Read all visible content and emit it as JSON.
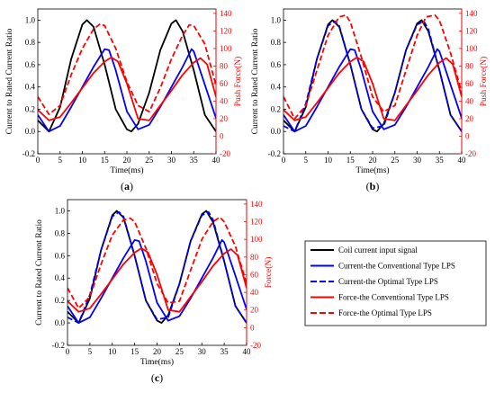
{
  "chart_data": [
    {
      "type": "line",
      "panel_label": "(a)",
      "xlabel": "Time(ms)",
      "ylabel": "Current to Rated Current Ratio",
      "y2label": "Push Force(N)",
      "xlim": [
        0,
        40
      ],
      "ylim": [
        -0.2,
        1.1
      ],
      "y2lim": [
        -20,
        145
      ],
      "xticks": [
        0,
        5,
        10,
        15,
        20,
        25,
        30,
        35,
        40
      ],
      "yticks": [
        -0.2,
        0.0,
        0.2,
        0.4,
        0.6,
        0.8,
        1.0
      ],
      "y2ticks": [
        -20,
        0,
        20,
        40,
        60,
        80,
        100,
        120,
        140
      ],
      "grid": false,
      "series": [
        {
          "axis": "left",
          "color": "#000000",
          "dash": "solid",
          "x": [
            0,
            2.5,
            5,
            7.5,
            10,
            11,
            12.5,
            15,
            17.5,
            20,
            21,
            22.5,
            25,
            27.5,
            30,
            31,
            32.5,
            35,
            37.5,
            40
          ],
          "y": [
            0.1,
            0.0,
            0.22,
            0.65,
            0.96,
            1.0,
            0.94,
            0.6,
            0.2,
            0.02,
            0.0,
            0.07,
            0.35,
            0.73,
            0.97,
            1.0,
            0.9,
            0.55,
            0.15,
            0.0
          ]
        },
        {
          "axis": "left",
          "color": "#0000ff",
          "dash": "solid",
          "x": [
            0,
            2.5,
            5,
            7.5,
            10,
            12.5,
            15,
            16,
            17.5,
            20,
            22.5,
            25,
            27.5,
            30,
            32.5,
            34.5,
            35,
            37.5,
            40
          ],
          "y": [
            0.15,
            0.0,
            0.05,
            0.22,
            0.4,
            0.58,
            0.74,
            0.73,
            0.55,
            0.18,
            0.02,
            0.06,
            0.22,
            0.4,
            0.58,
            0.74,
            0.72,
            0.42,
            0.12
          ]
        },
        {
          "axis": "right",
          "color": "#ff0000",
          "dash": "solid",
          "x": [
            0,
            2.5,
            5,
            7.5,
            10,
            12.5,
            15,
            16.5,
            18,
            20,
            22.5,
            25,
            27.5,
            30,
            32.5,
            35,
            36.5,
            38,
            40
          ],
          "y": [
            30,
            18,
            22,
            38,
            55,
            72,
            85,
            90,
            85,
            60,
            20,
            18,
            35,
            52,
            70,
            84,
            89,
            82,
            45
          ]
        },
        {
          "axis": "right",
          "color": "#ff0000",
          "dash": "dashed",
          "x": [
            0,
            2.5,
            5,
            7.5,
            10,
            12.5,
            14,
            15,
            17.5,
            20,
            22.5,
            25,
            27.5,
            30,
            32.5,
            34,
            35,
            37.5,
            40
          ],
          "y": [
            45,
            25,
            35,
            70,
            100,
            122,
            128,
            126,
            100,
            62,
            35,
            28,
            55,
            88,
            115,
            127,
            126,
            105,
            58
          ]
        }
      ]
    },
    {
      "type": "line",
      "panel_label": "(b)",
      "xlabel": "Time(ms)",
      "ylabel": "Current to Rated Current Ratio",
      "y2label": "Push Force(N)",
      "xlim": [
        0,
        40
      ],
      "ylim": [
        -0.2,
        1.1
      ],
      "y2lim": [
        -20,
        145
      ],
      "xticks": [
        0,
        5,
        10,
        15,
        20,
        25,
        30,
        35,
        40
      ],
      "yticks": [
        -0.2,
        0.0,
        0.2,
        0.4,
        0.6,
        0.8,
        1.0
      ],
      "y2ticks": [
        -20,
        0,
        20,
        40,
        60,
        80,
        100,
        120,
        140
      ],
      "grid": false,
      "series": [
        {
          "axis": "left",
          "color": "#000000",
          "dash": "solid",
          "x": [
            0,
            2.5,
            5,
            7.5,
            10,
            11,
            12.5,
            15,
            17.5,
            20,
            21,
            22.5,
            25,
            27.5,
            30,
            31,
            32.5,
            35,
            37.5,
            40
          ],
          "y": [
            0.1,
            0.0,
            0.22,
            0.65,
            0.96,
            1.0,
            0.94,
            0.6,
            0.2,
            0.02,
            0.0,
            0.07,
            0.35,
            0.73,
            0.97,
            1.0,
            0.9,
            0.55,
            0.15,
            0.0
          ]
        },
        {
          "axis": "left",
          "color": "#0000ff",
          "dash": "solid",
          "x": [
            0,
            2.5,
            5,
            7.5,
            10,
            12.5,
            15,
            16,
            17.5,
            20,
            22.5,
            25,
            27.5,
            30,
            32.5,
            34.5,
            35,
            37.5,
            40
          ],
          "y": [
            0.15,
            0.0,
            0.05,
            0.22,
            0.4,
            0.58,
            0.74,
            0.73,
            0.55,
            0.18,
            0.02,
            0.06,
            0.22,
            0.4,
            0.58,
            0.74,
            0.72,
            0.42,
            0.12
          ]
        },
        {
          "axis": "left",
          "color": "#0000ff",
          "dash": "dashed",
          "x": [
            0,
            2.5,
            5,
            7.5,
            10,
            11.5,
            12.5,
            15,
            17.5,
            20,
            22.5,
            25,
            27.5,
            30,
            31.5,
            32.5,
            35,
            37.5,
            40
          ],
          "y": [
            0.05,
            0.0,
            0.25,
            0.65,
            0.95,
            0.99,
            0.95,
            0.6,
            0.2,
            0.03,
            0.05,
            0.35,
            0.73,
            0.96,
            0.99,
            0.92,
            0.55,
            0.15,
            0.0
          ]
        },
        {
          "axis": "right",
          "color": "#ff0000",
          "dash": "solid",
          "x": [
            0,
            2.5,
            5,
            7.5,
            10,
            12.5,
            15,
            16.5,
            18,
            20,
            22.5,
            25,
            27.5,
            30,
            32.5,
            35,
            36.5,
            38,
            40
          ],
          "y": [
            30,
            18,
            22,
            38,
            55,
            72,
            85,
            90,
            85,
            60,
            20,
            18,
            35,
            52,
            70,
            84,
            89,
            82,
            45
          ]
        },
        {
          "axis": "right",
          "color": "#ff0000",
          "dash": "dashed",
          "x": [
            0,
            2.5,
            5,
            7.5,
            10,
            12.5,
            14,
            15,
            17.5,
            20,
            22.5,
            25,
            27.5,
            30,
            32,
            34,
            35,
            37.5,
            40
          ],
          "y": [
            45,
            20,
            35,
            75,
            115,
            136,
            138,
            130,
            90,
            45,
            28,
            35,
            75,
            115,
            136,
            138,
            132,
            95,
            50
          ]
        }
      ]
    },
    {
      "type": "line",
      "panel_label": "(c)",
      "xlabel": "Time(ms)",
      "ylabel": "Current to Rated Current Ratio",
      "y2label": "Force(N)",
      "xlim": [
        0,
        40
      ],
      "ylim": [
        -0.2,
        1.1
      ],
      "y2lim": [
        -20,
        145
      ],
      "xticks": [
        0,
        5,
        10,
        15,
        20,
        25,
        30,
        35,
        40
      ],
      "yticks": [
        -0.2,
        0.0,
        0.2,
        0.4,
        0.6,
        0.8,
        1.0
      ],
      "y2ticks": [
        -20,
        0,
        20,
        40,
        60,
        80,
        100,
        120,
        140
      ],
      "grid": false,
      "series": [
        {
          "axis": "left",
          "color": "#000000",
          "dash": "solid",
          "x": [
            0,
            2.5,
            5,
            7.5,
            10,
            11,
            12.5,
            15,
            17.5,
            20,
            21,
            22.5,
            25,
            27.5,
            30,
            31,
            32.5,
            35,
            37.5,
            40
          ],
          "y": [
            0.1,
            0.0,
            0.22,
            0.65,
            0.96,
            1.0,
            0.94,
            0.6,
            0.2,
            0.02,
            0.0,
            0.07,
            0.35,
            0.73,
            0.97,
            1.0,
            0.9,
            0.55,
            0.15,
            0.0
          ]
        },
        {
          "axis": "left",
          "color": "#0000ff",
          "dash": "solid",
          "x": [
            0,
            2.5,
            5,
            7.5,
            10,
            12.5,
            15,
            16,
            17.5,
            20,
            22.5,
            25,
            27.5,
            30,
            32.5,
            34.5,
            35,
            37.5,
            40
          ],
          "y": [
            0.15,
            0.0,
            0.05,
            0.22,
            0.4,
            0.58,
            0.74,
            0.73,
            0.55,
            0.18,
            0.02,
            0.06,
            0.22,
            0.4,
            0.58,
            0.74,
            0.72,
            0.42,
            0.12
          ]
        },
        {
          "axis": "left",
          "color": "#0000ff",
          "dash": "dashed",
          "x": [
            0,
            2.5,
            5,
            7.5,
            10,
            11.5,
            12.5,
            15,
            17.5,
            20,
            22.5,
            25,
            27.5,
            30,
            31.5,
            32.5,
            35,
            37.5,
            40
          ],
          "y": [
            0.05,
            0.0,
            0.25,
            0.65,
            0.95,
            0.99,
            0.95,
            0.6,
            0.2,
            0.03,
            0.05,
            0.35,
            0.73,
            0.96,
            0.99,
            0.92,
            0.55,
            0.15,
            0.0
          ]
        },
        {
          "axis": "right",
          "color": "#ff0000",
          "dash": "solid",
          "x": [
            0,
            2.5,
            5,
            7.5,
            10,
            12.5,
            15,
            16.5,
            18,
            20,
            22.5,
            25,
            27.5,
            30,
            32.5,
            35,
            36.5,
            38,
            40
          ],
          "y": [
            30,
            18,
            22,
            38,
            55,
            72,
            85,
            90,
            85,
            60,
            20,
            18,
            35,
            52,
            70,
            84,
            89,
            82,
            45
          ]
        },
        {
          "axis": "right",
          "color": "#ff0000",
          "dash": "dashed",
          "x": [
            0,
            2.5,
            5,
            7.5,
            10,
            12.5,
            14,
            15,
            17.5,
            20,
            22.5,
            25,
            27.5,
            30,
            32.5,
            34,
            35,
            37.5,
            40
          ],
          "y": [
            45,
            22,
            35,
            72,
            105,
            122,
            124,
            120,
            90,
            50,
            28,
            30,
            65,
            100,
            120,
            125,
            120,
            92,
            50
          ]
        }
      ]
    }
  ],
  "legend": {
    "placement": "right of panel (c)",
    "entries": [
      {
        "label": "Coil current input signal",
        "color": "#000000",
        "dash": "solid"
      },
      {
        "label": "Current-the Conventional Type LPS",
        "color": "#0000ff",
        "dash": "solid"
      },
      {
        "label": "Current-the Optimal Type LPS",
        "color": "#0000ff",
        "dash": "dashed"
      },
      {
        "label": "Force-the Conventional Type LPS",
        "color": "#ff0000",
        "dash": "solid"
      },
      {
        "label": "Force-the Optimal Type LPS",
        "color": "#ff0000",
        "dash": "dashed"
      }
    ]
  }
}
